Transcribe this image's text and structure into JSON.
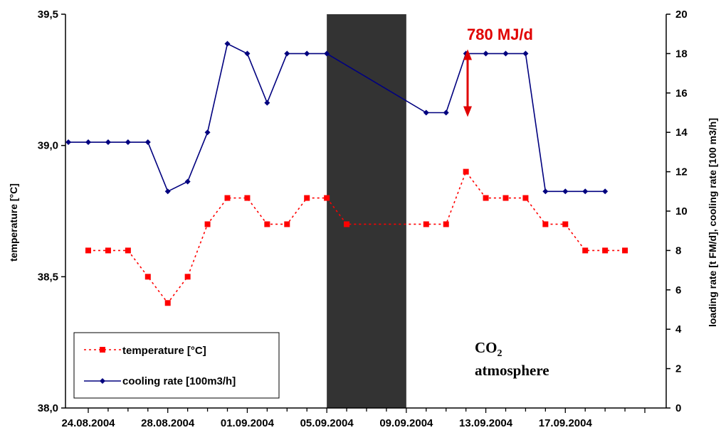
{
  "chart_data": {
    "type": "line",
    "title": "",
    "xlabel": "",
    "ylabel_left": "temperature [°C]",
    "ylabel_right": "loading rate [t FM/d], cooling rate [100 m3/h]",
    "ylim_left": [
      38.0,
      39.5
    ],
    "ylim_right": [
      0,
      20
    ],
    "yticks_left": [
      "38,0",
      "38,5",
      "39,0",
      "39,5"
    ],
    "yticks_right": [
      "0",
      "2",
      "4",
      "6",
      "8",
      "10",
      "12",
      "14",
      "16",
      "18",
      "20"
    ],
    "xticks": [
      "24.08.2004",
      "28.08.2004",
      "01.09.2004",
      "05.09.2004",
      "09.09.2004",
      "13.09.2004",
      "17.09.2004"
    ],
    "x_day_count": 28,
    "grid": false,
    "legend_position": "bottom-left",
    "shaded_period": {
      "start": "05.09.2004",
      "end": "09.09.2004",
      "color": "#333333",
      "label": "CO2 atmosphere"
    },
    "annotation": {
      "text": "780 MJ/d",
      "color": "#e00000"
    },
    "series": [
      {
        "name": "temperature [°C]",
        "axis": "left",
        "color": "#ff0000",
        "style": "dotted",
        "marker": "square",
        "points": [
          {
            "x": "24.08.2004",
            "y": 38.6
          },
          {
            "x": "25.08.2004",
            "y": 38.6
          },
          {
            "x": "26.08.2004",
            "y": 38.6
          },
          {
            "x": "27.08.2004",
            "y": 38.5
          },
          {
            "x": "28.08.2004",
            "y": 38.4
          },
          {
            "x": "29.08.2004",
            "y": 38.5
          },
          {
            "x": "30.08.2004",
            "y": 38.7
          },
          {
            "x": "31.08.2004",
            "y": 38.8
          },
          {
            "x": "01.09.2004",
            "y": 38.8
          },
          {
            "x": "02.09.2004",
            "y": 38.7
          },
          {
            "x": "03.09.2004",
            "y": 38.7
          },
          {
            "x": "04.09.2004",
            "y": 38.8
          },
          {
            "x": "05.09.2004",
            "y": 38.8
          },
          {
            "x": "06.09.2004",
            "y": 38.7
          },
          {
            "x": "10.09.2004",
            "y": 38.7
          },
          {
            "x": "11.09.2004",
            "y": 38.7
          },
          {
            "x": "12.09.2004",
            "y": 38.9
          },
          {
            "x": "13.09.2004",
            "y": 38.8
          },
          {
            "x": "14.09.2004",
            "y": 38.8
          },
          {
            "x": "15.09.2004",
            "y": 38.8
          },
          {
            "x": "16.09.2004",
            "y": 38.7
          },
          {
            "x": "17.09.2004",
            "y": 38.7
          },
          {
            "x": "18.09.2004",
            "y": 38.6
          },
          {
            "x": "19.09.2004",
            "y": 38.6
          },
          {
            "x": "20.09.2004",
            "y": 38.6
          }
        ]
      },
      {
        "name": "cooling rate [100m3/h]",
        "axis": "right",
        "color": "#00007f",
        "style": "solid",
        "marker": "diamond",
        "points": [
          {
            "x": "23.08.2004",
            "y": 13.5
          },
          {
            "x": "24.08.2004",
            "y": 13.5
          },
          {
            "x": "25.08.2004",
            "y": 13.5
          },
          {
            "x": "26.08.2004",
            "y": 13.5
          },
          {
            "x": "27.08.2004",
            "y": 13.5
          },
          {
            "x": "28.08.2004",
            "y": 11.0
          },
          {
            "x": "29.08.2004",
            "y": 11.5
          },
          {
            "x": "30.08.2004",
            "y": 14.0
          },
          {
            "x": "31.08.2004",
            "y": 18.5
          },
          {
            "x": "01.09.2004",
            "y": 18.0
          },
          {
            "x": "02.09.2004",
            "y": 15.5
          },
          {
            "x": "03.09.2004",
            "y": 18.0
          },
          {
            "x": "04.09.2004",
            "y": 18.0
          },
          {
            "x": "05.09.2004",
            "y": 18.0
          },
          {
            "x": "10.09.2004",
            "y": 15.0
          },
          {
            "x": "11.09.2004",
            "y": 15.0
          },
          {
            "x": "12.09.2004",
            "y": 18.0
          },
          {
            "x": "13.09.2004",
            "y": 18.0
          },
          {
            "x": "14.09.2004",
            "y": 18.0
          },
          {
            "x": "15.09.2004",
            "y": 18.0
          },
          {
            "x": "16.09.2004",
            "y": 11.0
          },
          {
            "x": "17.09.2004",
            "y": 11.0
          },
          {
            "x": "18.09.2004",
            "y": 11.0
          },
          {
            "x": "19.09.2004",
            "y": 11.0
          }
        ]
      }
    ]
  }
}
